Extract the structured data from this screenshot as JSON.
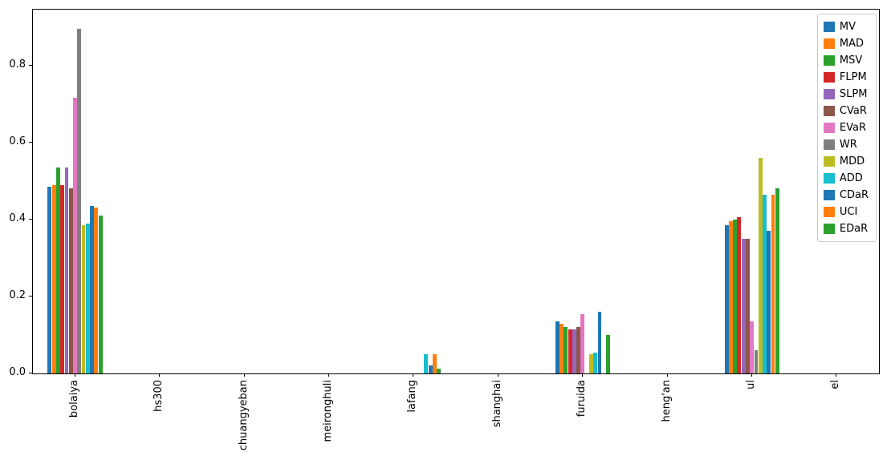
{
  "chart_data": {
    "type": "bar",
    "title": "",
    "xlabel": "",
    "ylabel": "",
    "grid": false,
    "legend_position": "upper right",
    "ylim": [
      0,
      0.945
    ],
    "ytick_labels": [
      "0.0",
      "0.2",
      "0.4",
      "0.6",
      "0.8"
    ],
    "ytick_values": [
      0.0,
      0.2,
      0.4,
      0.6,
      0.8
    ],
    "categories": [
      "bolaiya",
      "hs300",
      "chuangyeban",
      "meironghuli",
      "lafang",
      "shanghai",
      "furuida",
      "heng'an",
      "ul",
      "el"
    ],
    "series": [
      {
        "name": "MV",
        "color": "#1f77b4",
        "values": [
          0.485,
          0,
          0,
          0,
          0.0,
          0,
          0.135,
          0,
          0.385,
          0
        ]
      },
      {
        "name": "MAD",
        "color": "#ff7f0e",
        "values": [
          0.49,
          0,
          0,
          0,
          0.0,
          0,
          0.13,
          0,
          0.395,
          0
        ]
      },
      {
        "name": "MSV",
        "color": "#2ca02c",
        "values": [
          0.535,
          0,
          0,
          0,
          0.0,
          0,
          0.12,
          0,
          0.4,
          0
        ]
      },
      {
        "name": "FLPM",
        "color": "#d62728",
        "values": [
          0.49,
          0,
          0,
          0,
          0.0,
          0,
          0.115,
          0,
          0.405,
          0
        ]
      },
      {
        "name": "SLPM",
        "color": "#9467bd",
        "values": [
          0.535,
          0,
          0,
          0,
          0.0,
          0,
          0.115,
          0,
          0.35,
          0
        ]
      },
      {
        "name": "CVaR",
        "color": "#8c564b",
        "values": [
          0.48,
          0,
          0,
          0,
          0.0,
          0,
          0.12,
          0,
          0.35,
          0
        ]
      },
      {
        "name": "EVaR",
        "color": "#e377c2",
        "values": [
          0.715,
          0,
          0,
          0,
          0.0,
          0,
          0.155,
          0,
          0.135,
          0
        ]
      },
      {
        "name": "WR",
        "color": "#7f7f7f",
        "values": [
          0.895,
          0,
          0,
          0,
          0.0,
          0,
          0.0,
          0,
          0.06,
          0
        ]
      },
      {
        "name": "MDD",
        "color": "#bcbd22",
        "values": [
          0.385,
          0,
          0,
          0,
          0.0,
          0,
          0.05,
          0,
          0.56,
          0
        ]
      },
      {
        "name": "ADD",
        "color": "#17becf",
        "values": [
          0.39,
          0,
          0,
          0,
          0.05,
          0,
          0.055,
          0,
          0.465,
          0
        ]
      },
      {
        "name": "CDaR",
        "color": "#1f77b4",
        "values": [
          0.435,
          0,
          0,
          0,
          0.02,
          0,
          0.16,
          0,
          0.37,
          0
        ]
      },
      {
        "name": "UCI",
        "color": "#ff7f0e",
        "values": [
          0.43,
          0,
          0,
          0,
          0.05,
          0,
          0.0,
          0,
          0.465,
          0
        ]
      },
      {
        "name": "EDaR",
        "color": "#2ca02c",
        "values": [
          0.41,
          0,
          0,
          0,
          0.012,
          0,
          0.1,
          0,
          0.48,
          0
        ]
      }
    ]
  }
}
